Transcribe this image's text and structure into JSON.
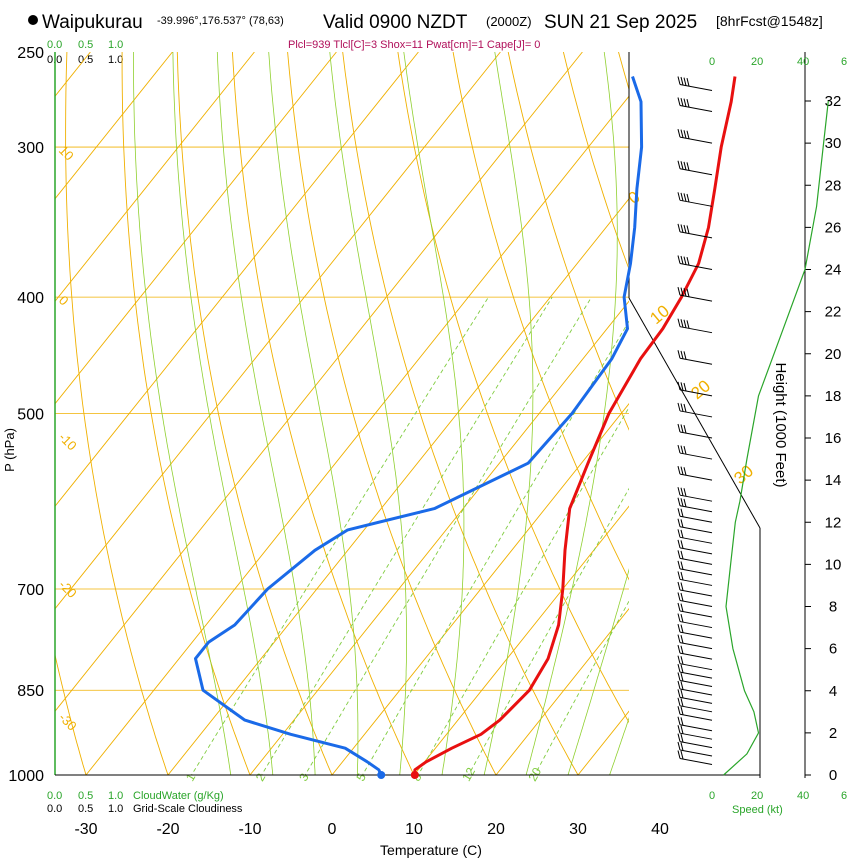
{
  "header": {
    "station": "Waipukurau",
    "coords": "-39.996°,176.537° (78,63)",
    "valid": "Valid 0900 NZDT",
    "utc": "(2000Z)",
    "date": "SUN 21 Sep 2025",
    "forecast": "[8hrFcst@1548z]",
    "indices": "Plcl=939 Tlcl[C]=3 Shox=11 Pwat[cm]=1 Cape[J]= 0"
  },
  "chart_data": {
    "type": "line",
    "title": "Waipukurau -39.996°,176.537° (78,63) Valid 0900 NZDT (2000Z) SUN 21 Sep 2025 [8hrFcst@1548z]",
    "xlabel": "Temperature (C)",
    "ylabel": "P (hPa)",
    "y2label": "Height (1000 Feet)",
    "x_ticks": [
      "-30",
      "-20",
      "-10",
      "0",
      "10",
      "20",
      "30",
      "40"
    ],
    "x_tick_values": [
      -30,
      -20,
      -10,
      0,
      10,
      20,
      30,
      40
    ],
    "p_ticks": [
      "250",
      "300",
      "400",
      "500",
      "700",
      "850",
      "1000"
    ],
    "p_tick_values": [
      250,
      300,
      400,
      500,
      700,
      850,
      1000
    ],
    "height_ticks": [
      "0",
      "2",
      "4",
      "6",
      "8",
      "10",
      "12",
      "14",
      "16",
      "18",
      "20",
      "22",
      "24",
      "26",
      "28",
      "30",
      "32"
    ],
    "height_tick_values": [
      0,
      2,
      4,
      6,
      8,
      10,
      12,
      14,
      16,
      18,
      20,
      22,
      24,
      26,
      28,
      30,
      32
    ],
    "ylim_hpa": [
      1040,
      250
    ],
    "skew_scale": "log-pressure, skewed 45°",
    "isotherm_labels": [
      {
        "text": "10",
        "p": 300
      },
      {
        "text": "0",
        "p": 400
      },
      {
        "text": "-10",
        "p": 520
      },
      {
        "text": "-20",
        "p": 690
      },
      {
        "text": "-30",
        "p": 890
      }
    ],
    "dry_adiabat_labels": [
      "0",
      "10",
      "20",
      "30"
    ],
    "mixing_ratio_labels": [
      "1",
      "2",
      "3",
      "5",
      "8",
      "12",
      "20"
    ],
    "top_scale": {
      "green": [
        "0.0",
        "0.5",
        "1.0"
      ],
      "black": [
        "0.0",
        "0.5",
        "1.0"
      ]
    },
    "bottom_scale": {
      "green": [
        "0.0",
        "0.5",
        "1.0"
      ],
      "black": [
        "0.0",
        "0.5",
        "1.0"
      ],
      "green_label": "CloudWater (g/Kg)",
      "black_label": "Grid-Scale Cloudiness"
    },
    "speed_scale": {
      "ticks": [
        "0",
        "20",
        "40",
        "6"
      ],
      "label": "Speed (kt)"
    },
    "series": [
      {
        "name": "temperature",
        "color": "#e81010",
        "points": [
          [
            1000,
            10.1
          ],
          [
            990,
            9.6
          ],
          [
            975,
            10.2
          ],
          [
            950,
            12.0
          ],
          [
            925,
            14.2
          ],
          [
            900,
            15.1
          ],
          [
            850,
            15.8
          ],
          [
            800,
            15.0
          ],
          [
            750,
            13.0
          ],
          [
            700,
            10.0
          ],
          [
            650,
            6.5
          ],
          [
            600,
            3.0
          ],
          [
            550,
            0.8
          ],
          [
            500,
            -1.5
          ],
          [
            450,
            -3.0
          ],
          [
            425,
            -3.2
          ],
          [
            400,
            -4.0
          ],
          [
            375,
            -5.2
          ],
          [
            350,
            -7.5
          ],
          [
            325,
            -10.5
          ],
          [
            300,
            -13.8
          ],
          [
            275,
            -17.0
          ],
          [
            262,
            -19.0
          ]
        ]
      },
      {
        "name": "dewpoint",
        "color": "#1a6ae8",
        "points": [
          [
            1000,
            6.0
          ],
          [
            990,
            5.2
          ],
          [
            975,
            3.0
          ],
          [
            950,
            -1.0
          ],
          [
            925,
            -9.0
          ],
          [
            900,
            -16.0
          ],
          [
            850,
            -24.0
          ],
          [
            800,
            -28.0
          ],
          [
            775,
            -28.0
          ],
          [
            750,
            -26.5
          ],
          [
            700,
            -26.0
          ],
          [
            650,
            -24.0
          ],
          [
            625,
            -22.0
          ],
          [
            600,
            -13.5
          ],
          [
            550,
            -6.5
          ],
          [
            500,
            -6.0
          ],
          [
            450,
            -6.5
          ],
          [
            425,
            -7.5
          ],
          [
            400,
            -11.0
          ],
          [
            375,
            -13.5
          ],
          [
            350,
            -16.5
          ],
          [
            325,
            -20.0
          ],
          [
            300,
            -23.5
          ],
          [
            275,
            -28.0
          ],
          [
            262,
            -31.5
          ]
        ]
      }
    ],
    "surface_markers": [
      {
        "name": "surface-temperature",
        "p": 1000,
        "t": 10.1,
        "color": "#e81010"
      },
      {
        "name": "surface-dewpoint",
        "p": 1000,
        "t": 6.0,
        "color": "#1a6ae8"
      }
    ],
    "wind_barbs_height_kft": [
      0.5,
      0.9,
      1.3,
      1.7,
      2.1,
      2.6,
      3.0,
      3.4,
      3.8,
      4.2,
      4.6,
      5.0,
      5.5,
      6.0,
      6.5,
      7.0,
      7.5,
      8.0,
      8.5,
      9.0,
      9.5,
      10.0,
      10.5,
      11.0,
      11.5,
      12.0,
      12.5,
      13.0,
      14.0,
      15.0,
      16.0,
      17.0,
      18.0,
      19.5,
      21.0,
      22.5,
      24.0,
      25.5,
      27.0,
      28.5,
      30.0,
      31.5,
      32.5
    ],
    "wind_speed_profile_kt": [
      [
        0,
        5
      ],
      [
        1,
        15
      ],
      [
        2,
        20
      ],
      [
        3,
        18
      ],
      [
        4,
        14
      ],
      [
        6,
        9
      ],
      [
        8,
        6
      ],
      [
        10,
        8
      ],
      [
        12,
        10
      ],
      [
        13,
        12
      ],
      [
        15,
        15
      ],
      [
        18,
        20
      ],
      [
        21,
        30
      ],
      [
        24,
        40
      ],
      [
        27,
        45
      ],
      [
        30,
        48
      ],
      [
        32,
        50
      ]
    ]
  },
  "colors": {
    "isotherm": "#f0b000",
    "dry_adiabat": "#f0b000",
    "moist_adiabat": "#90d030",
    "mixing_ratio": "#80cc40",
    "cloud_green": "#2aa52a",
    "indices": "#b0105a"
  }
}
